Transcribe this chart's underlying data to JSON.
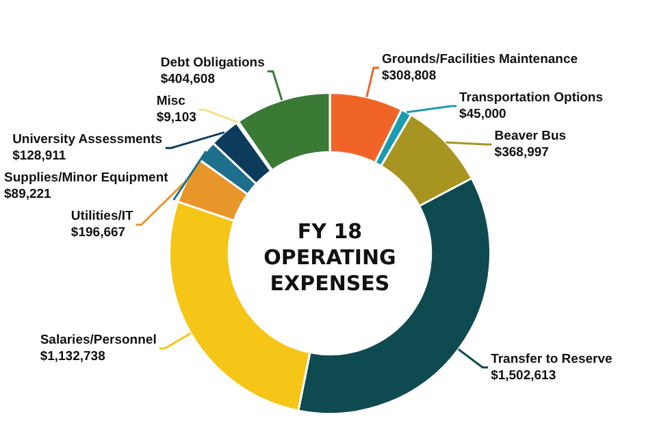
{
  "chart_data": {
    "type": "donut",
    "title": "FY 18 OPERATING EXPENSES",
    "categories": [
      "Grounds/Facilities Maintenance",
      "Transportation Options",
      "Beaver Bus",
      "Transfer to Reserve",
      "Salaries/Personnel",
      "Utilities/IT",
      "Supplies/Minor Equipment",
      "University Assessments",
      "Misc",
      "Debt Obligations"
    ],
    "values": [
      308808,
      45000,
      368997,
      1502613,
      1132738,
      196667,
      89221,
      128911,
      9103,
      404608
    ],
    "value_labels": [
      "$308,808",
      "$45,000",
      "$368,997",
      "$1,502,613",
      "$1,132,738",
      "$196,667",
      "$89,221",
      "$128,911",
      "$9,103",
      "$404,608"
    ],
    "colors": [
      "#f06428",
      "#1a9bb0",
      "#a89420",
      "#0e4a50",
      "#f5c518",
      "#e8962a",
      "#1d6f8c",
      "#0d3b5c",
      "#f7e08a",
      "#3a7a35"
    ],
    "legend": false
  }
}
